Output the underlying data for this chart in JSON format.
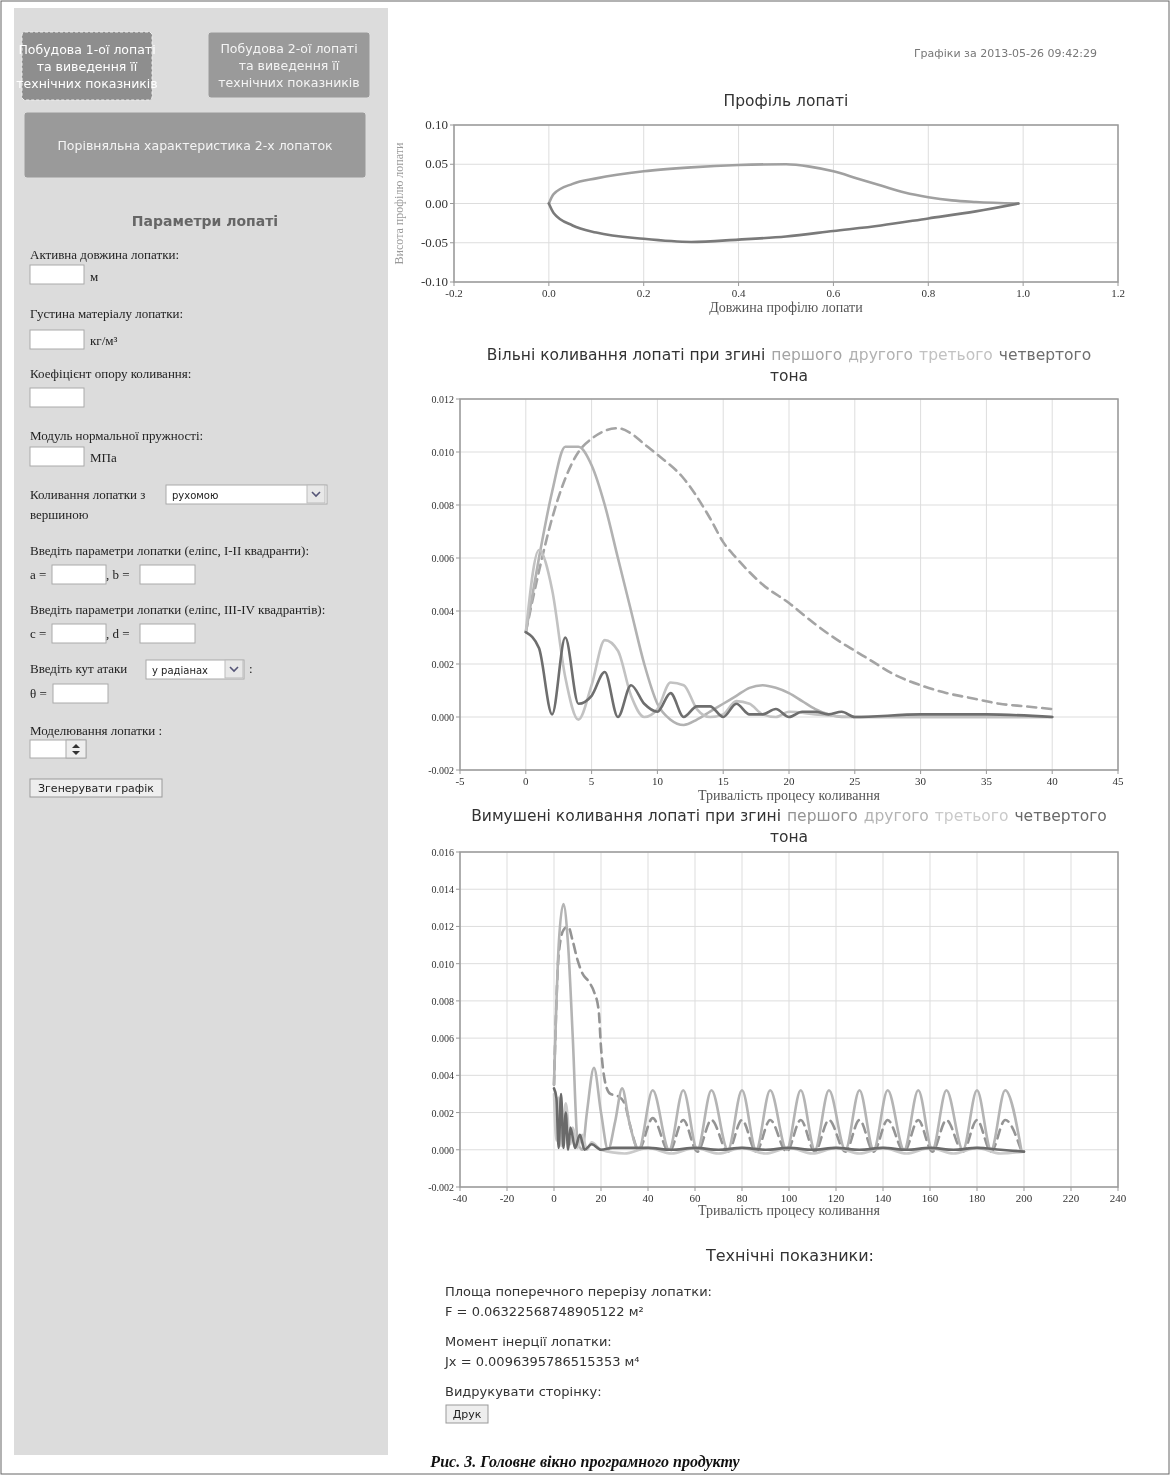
{
  "chart_data": [
    {
      "type": "other",
      "annotations": [
        "Побудова 1-ої лопаті та виведення її технічних показників",
        "Побудова 2-ої лопаті та виведення її технічних показників",
        "Порівняльна характеристика 2-х лопаток",
        "Параметри лопаті",
        "Активна довжина лопатки:",
        "м",
        "Густина матеріалу лопатки:",
        "кг/м³",
        "Коефіцієнт опору коливання:",
        "Модуль нормальної пружності:",
        "МПа",
        "Коливання лопатки з",
        "рухомою",
        "вершиною",
        "Введіть параметри лопатки (еліпс, I-II квадранти):",
        "a =",
        ", b =",
        "Введіть параметри лопатки (еліпс, III-IV квадрантів):",
        "c =",
        ", d =",
        "Введіть кут атаки",
        "у радіанах",
        ":",
        "θ =",
        "Моделювання лопатки :",
        "Згенерувати графік"
      ]
    },
    {
      "type": "line",
      "title": "Профіль лопаті",
      "xlabel": "Довжина профілю лопати",
      "ylabel": "Висота профілю лопати",
      "annotations": [
        "Графіки за 2013-05-26 09:42:29"
      ],
      "grid": true,
      "xlim": [
        -0.2,
        1.2
      ],
      "xticks": [
        {
          "value": -0.2,
          "label": "-0.2"
        },
        {
          "value": 0,
          "label": "0.0"
        },
        0.2,
        0.4,
        0.6,
        0.8,
        {
          "value": 1,
          "label": "1.0"
        },
        1.2
      ],
      "ylim": [
        -0.1,
        0.1
      ],
      "yticks": [
        {
          "value": -0.1,
          "label": "-0.10"
        },
        {
          "value": -0.05,
          "label": "-0.05"
        },
        {
          "value": 0,
          "label": "0.00"
        },
        {
          "value": 0.05,
          "label": "0.05"
        },
        {
          "value": 0.1,
          "label": "0.10"
        }
      ],
      "series": [
        {
          "color": "#a0a0a0",
          "x": [
            0,
            0.01,
            0.05,
            0.1,
            0.2,
            0.3,
            0.4,
            0.5,
            0.55,
            0.6,
            0.65,
            0.7,
            0.75,
            0.8,
            0.85,
            0.9,
            0.99
          ],
          "values": [
            0,
            0.012,
            0.025,
            0.032,
            0.041,
            0.046,
            0.049,
            0.05,
            0.047,
            0.041,
            0.032,
            0.023,
            0.014,
            0.008,
            0.004,
            0.002,
            0
          ]
        },
        {
          "color": "#7a7a7a",
          "x": [
            0,
            0.01,
            0.05,
            0.1,
            0.2,
            0.3,
            0.4,
            0.5,
            0.6,
            0.7,
            0.8,
            0.9,
            0.99
          ],
          "values": [
            0,
            -0.012,
            -0.028,
            -0.037,
            -0.045,
            -0.049,
            -0.046,
            -0.042,
            -0.035,
            -0.028,
            -0.019,
            -0.01,
            0
          ]
        }
      ]
    },
    {
      "type": "line",
      "title": "Вільні коливання лопаті при згині",
      "xlabel": "Тривалість процесу коливання",
      "annotations": [
        "тона"
      ],
      "grid": true,
      "legend": "top",
      "xlim": [
        -5,
        45
      ],
      "xticks": [
        -5,
        0,
        5,
        10,
        15,
        20,
        25,
        30,
        35,
        40,
        45
      ],
      "ylim": [
        -0.002,
        0.012
      ],
      "yticks": [
        {
          "value": -0.002,
          "label": "-0.002"
        },
        {
          "value": 0,
          "label": "0.000"
        },
        {
          "value": 0.002,
          "label": "0.002"
        },
        {
          "value": 0.004,
          "label": "0.004"
        },
        {
          "value": 0.006,
          "label": "0.006"
        },
        {
          "value": 0.008,
          "label": "0.008"
        },
        {
          "value": 0.01,
          "label": "0.010"
        },
        {
          "value": 0.012,
          "label": "0.012"
        }
      ],
      "series": [
        {
          "name": "першого",
          "color": "#a4a4a4",
          "line_style": "dashed",
          "x": [
            0,
            1,
            2,
            3,
            4,
            5,
            6,
            7,
            8,
            9,
            10,
            12,
            14,
            15,
            16,
            18,
            20,
            22,
            24,
            25,
            26,
            28,
            30,
            32,
            34,
            36,
            38,
            40
          ],
          "values": [
            0.0032,
            0.0055,
            0.0075,
            0.009,
            0.01,
            0.0105,
            0.0108,
            0.0109,
            0.0107,
            0.0103,
            0.0099,
            0.009,
            0.0075,
            0.0066,
            0.006,
            0.005,
            0.0043,
            0.0035,
            0.0028,
            0.0025,
            0.0022,
            0.0016,
            0.0012,
            0.0009,
            0.0007,
            0.0005,
            0.0004,
            0.0003
          ]
        },
        {
          "name": "другого",
          "color": "#b2b2b2",
          "x": [
            0,
            1,
            2,
            3,
            4,
            5,
            6,
            7,
            8,
            9,
            10,
            11,
            12,
            13,
            14,
            15,
            16,
            17,
            18,
            19,
            20,
            21,
            22,
            23,
            24,
            25,
            30,
            35,
            40
          ],
          "values": [
            0.0032,
            0.006,
            0.0085,
            0.0102,
            0.0102,
            0.0095,
            0.008,
            0.006,
            0.004,
            0.002,
            0.0005,
            -0.0001,
            -0.0003,
            -0.0001,
            0.0002,
            0.0005,
            0.0008,
            0.0011,
            0.0012,
            0.0011,
            0.0009,
            0.0006,
            0.0003,
            0.0001,
            0,
            0,
            0,
            0,
            0
          ]
        },
        {
          "name": "третього",
          "color": "#c2c2c2",
          "x": [
            0,
            1,
            2,
            3,
            4,
            5,
            6,
            7,
            8,
            9,
            10,
            11,
            12,
            13,
            14,
            15,
            16,
            17,
            18,
            19,
            20,
            22,
            25,
            30,
            35,
            40
          ],
          "values": [
            0.0032,
            0.0063,
            0.0048,
            0.0015,
            -0.0001,
            0.0012,
            0.0029,
            0.0025,
            0.0008,
            0,
            0.0003,
            0.0013,
            0.0012,
            0.0003,
            0,
            0.0001,
            0.0006,
            0.0005,
            0.0001,
            0,
            0.0002,
            0.0001,
            0,
            0,
            0,
            0
          ]
        },
        {
          "name": "четвертого",
          "color": "#6e6e6e",
          "x": [
            0,
            1,
            2,
            3,
            4,
            5,
            6,
            7,
            8,
            9,
            10,
            11,
            12,
            13,
            14,
            15,
            16,
            17,
            18,
            19,
            20,
            21,
            22,
            23,
            24,
            25,
            30,
            35,
            40
          ],
          "values": [
            0.0032,
            0.0026,
            0.0001,
            0.003,
            0.0005,
            0.0008,
            0.0017,
            0,
            0.0012,
            0.0005,
            0.0002,
            0.0009,
            0,
            0.0004,
            0.0004,
            0,
            0.0005,
            0.0001,
            0.0001,
            0.0003,
            0,
            0.0002,
            0.0002,
            0.0001,
            0.0002,
            0,
            0.0001,
            0.0001,
            0
          ]
        }
      ]
    },
    {
      "type": "line",
      "title": "Вимушені коливання лопаті при згині",
      "xlabel": "Тривалість процесу коливання",
      "annotations": [
        "тона"
      ],
      "grid": true,
      "legend": "top",
      "xlim": [
        -40,
        240
      ],
      "xticks": [
        -40,
        -20,
        0,
        20,
        40,
        60,
        80,
        100,
        120,
        140,
        160,
        180,
        200,
        220,
        240
      ],
      "ylim": [
        -0.002,
        0.016
      ],
      "yticks": [
        {
          "value": -0.002,
          "label": "-0.002"
        },
        {
          "value": 0,
          "label": "0.000"
        },
        {
          "value": 0.002,
          "label": "0.002"
        },
        {
          "value": 0.004,
          "label": "0.004"
        },
        {
          "value": 0.006,
          "label": "0.006"
        },
        {
          "value": 0.008,
          "label": "0.008"
        },
        {
          "value": 0.01,
          "label": "0.010"
        },
        {
          "value": 0.012,
          "label": "0.012"
        },
        {
          "value": 0.014,
          "label": "0.014"
        },
        {
          "value": 0.016,
          "label": "0.016"
        }
      ],
      "series": [
        {
          "name": "першого",
          "color": "#949494",
          "line_style": "dashed",
          "x": [
            0,
            2,
            4,
            6,
            8,
            10,
            12,
            15,
            17,
            19,
            20,
            22,
            24,
            27,
            30,
            33,
            36,
            42,
            49,
            55,
            61,
            67,
            74,
            80,
            86,
            92,
            99,
            105,
            111,
            117,
            124,
            130,
            136,
            142,
            149,
            155,
            161,
            167,
            174,
            180,
            186,
            192,
            199
          ],
          "values": [
            0.0035,
            0.0105,
            0.0118,
            0.012,
            0.0112,
            0.0102,
            0.0095,
            0.009,
            0.0085,
            0.0075,
            0.0055,
            0.0035,
            0.003,
            0.0029,
            0.0025,
            0.001,
            0,
            0.0017,
            -0.0001,
            0.0016,
            -0.0001,
            0.0016,
            -0.0001,
            0.0016,
            -0.0001,
            0.0016,
            -0.0001,
            0.0016,
            -0.0001,
            0.0016,
            -0.0001,
            0.0016,
            -0.0001,
            0.0016,
            -0.0001,
            0.0016,
            -0.0001,
            0.0016,
            -0.0001,
            0.0016,
            -0.0001,
            0.0016,
            -0.0001
          ]
        },
        {
          "name": "другого",
          "color": "#b4b4b4",
          "x": [
            0,
            2,
            4,
            6,
            8,
            10,
            12,
            14,
            17,
            20,
            23,
            26,
            29,
            32,
            36,
            42,
            49,
            55,
            61,
            67,
            74,
            80,
            86,
            92,
            99,
            105,
            111,
            117,
            124,
            130,
            136,
            142,
            149,
            155,
            161,
            167,
            174,
            180,
            186,
            192,
            199
          ],
          "values": [
            0.0035,
            0.011,
            0.0132,
            0.011,
            0.006,
            0.0005,
            0,
            0.002,
            0.0044,
            0.002,
            0,
            0.0015,
            0.0033,
            0.0015,
            0,
            0.0032,
            0,
            0.0032,
            0,
            0.0032,
            0,
            0.0032,
            0,
            0.0032,
            0,
            0.0032,
            0,
            0.0032,
            0,
            0.0032,
            0,
            0.0032,
            0,
            0.0032,
            0,
            0.0032,
            0,
            0.0032,
            0,
            0.0032,
            -0.0001
          ]
        },
        {
          "name": "третього",
          "color": "#cacaca",
          "x": [
            0,
            1,
            2,
            3,
            5,
            7,
            8,
            10,
            12,
            14,
            16,
            20,
            30,
            40,
            50,
            60,
            70,
            80,
            90,
            100,
            110,
            120,
            130,
            140,
            150,
            160,
            170,
            180,
            190,
            200
          ],
          "values": [
            0.003,
            0.0005,
            0.0028,
            0.0002,
            0.0025,
            0.0003,
            0.0012,
            0.0001,
            0.0008,
            0,
            0.0004,
            0,
            -0.0002,
            0.0001,
            -0.0002,
            0.0001,
            -0.0002,
            0.0001,
            -0.0002,
            0.0001,
            -0.0002,
            0.0001,
            -0.0002,
            0.0001,
            -0.0002,
            0.0001,
            -0.0002,
            0.0001,
            -0.0002,
            -0.0001
          ]
        },
        {
          "name": "четвертого",
          "color": "#6a6a6a",
          "x": [
            0,
            1,
            2,
            3,
            4,
            5,
            6,
            7,
            9,
            11,
            13,
            16,
            20,
            25,
            40,
            50,
            60,
            70,
            80,
            90,
            100,
            110,
            120,
            130,
            140,
            150,
            160,
            170,
            180,
            190,
            200
          ],
          "values": [
            0.0033,
            0.0028,
            0.0001,
            0.003,
            0.0001,
            0.002,
            0,
            0.0012,
            0.0001,
            0.0008,
            0,
            0.0003,
            0,
            0.0001,
            0.0001,
            0,
            0.0001,
            0,
            0.0001,
            0,
            0.0001,
            0,
            0.0001,
            0,
            0.0001,
            0,
            0.0001,
            0,
            0.0001,
            0,
            -0.0001
          ]
        }
      ]
    },
    {
      "type": "other",
      "title": "Технічні показники:",
      "annotations": [
        "Площа поперечного перерізу лопатки:",
        "F = 0.06322568748905122 м²",
        "Момент інерції лопатки:",
        "Jx = 0.0096395786515353 м⁴",
        "Видрукувати сторінку:",
        "Друк",
        "Рис. 3. Головне вікно програмного продукту"
      ]
    }
  ]
}
